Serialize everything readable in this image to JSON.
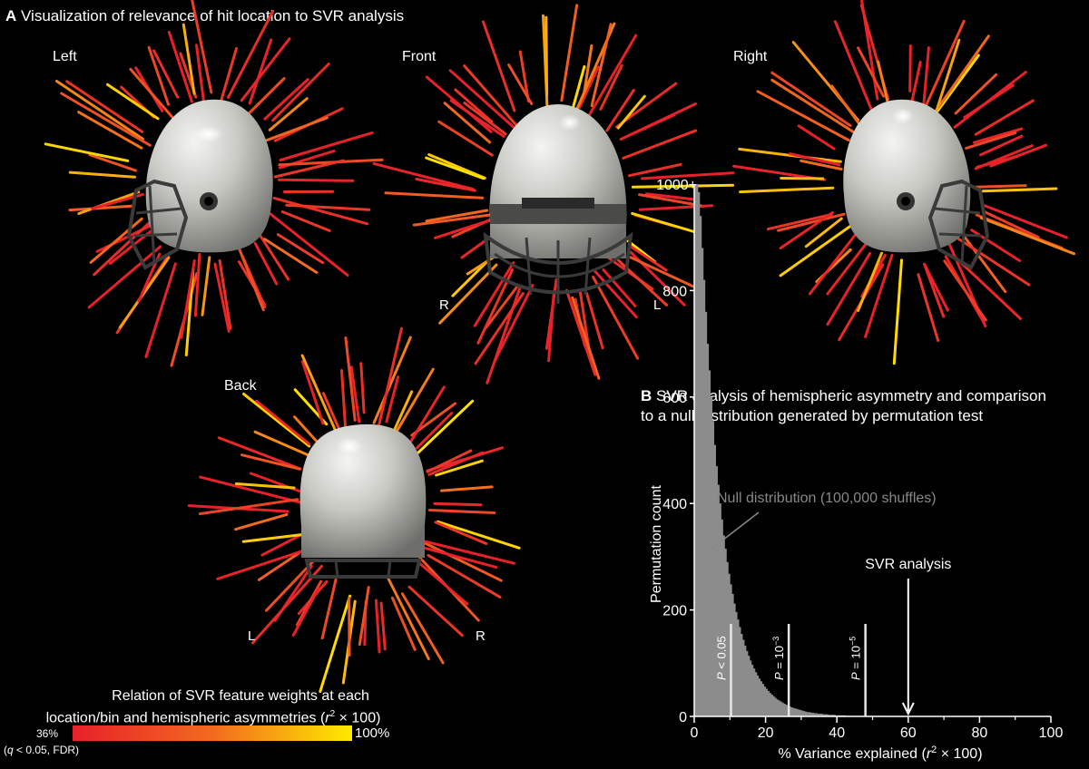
{
  "panel_a": {
    "letter": "A",
    "title": "Visualization of relevance of hit location to SVR analysis",
    "views": [
      {
        "label": "Left"
      },
      {
        "label": "Front",
        "left_marker": "R",
        "right_marker": "L"
      },
      {
        "label": "Right"
      },
      {
        "label": "Back",
        "left_marker": "L",
        "right_marker": "R"
      }
    ],
    "colorbar": {
      "title_line1": "Relation of SVR feature weights at each",
      "title_line2_prefix": "location/bin and hemispheric asymmetries (",
      "title_line2_italic": "r",
      "title_line2_sup": "2",
      "title_line2_suffix": " × 100)",
      "min_label": "36%",
      "max_label": "100%",
      "note_open": "(",
      "note_italic": "q",
      "note_rest": " < 0.05, FDR)",
      "colors": [
        "#e8202a",
        "#f26a1f",
        "#ffea00"
      ]
    }
  },
  "panel_b": {
    "letter": "B",
    "title_line1": "SVR analysis of hemispheric asymmetry and comparison",
    "title_line2": "to a null distribution generated by permutation test",
    "null_label": "Null distribution (100,000 shuffles)",
    "svr_label": "SVR analysis",
    "thresholds": [
      {
        "p_italic": "P",
        "text": " < 0.05",
        "x": 10.3
      },
      {
        "p_italic": "P",
        "text": " = 10",
        "sup": "−3",
        "x": 26.5
      },
      {
        "p_italic": "P",
        "text": " = 10",
        "sup": "−5",
        "x": 48
      }
    ]
  },
  "chart_data": {
    "type": "bar",
    "xlabel": "% Variance explained (r² × 100)",
    "ylabel": "Permutation count",
    "xlim": [
      0,
      100
    ],
    "ylim": [
      0,
      1000
    ],
    "xticks": [
      0,
      20,
      40,
      60,
      80,
      100
    ],
    "yticks": [
      0,
      200,
      400,
      600,
      800
    ],
    "ytick_top_label": "1000+",
    "bin_width": 0.5,
    "values": [
      1000,
      1000,
      985,
      940,
      880,
      820,
      760,
      700,
      650,
      600,
      555,
      510,
      470,
      435,
      400,
      370,
      340,
      315,
      290,
      268,
      248,
      230,
      212,
      196,
      182,
      168,
      155,
      144,
      133,
      123,
      114,
      105,
      97,
      90,
      83,
      77,
      71,
      66,
      61,
      56,
      52,
      48,
      44,
      41,
      38,
      35,
      32,
      30,
      28,
      26,
      24,
      22,
      20,
      19,
      17,
      16,
      15,
      14,
      13,
      12,
      11,
      10,
      9,
      8,
      8,
      7,
      7,
      6,
      6,
      5,
      5,
      5,
      4,
      4,
      4,
      3,
      3,
      3,
      3,
      2,
      2,
      2,
      2,
      2,
      2,
      1,
      1,
      1,
      1,
      1,
      1,
      1,
      1,
      1,
      1,
      1,
      1,
      1,
      1,
      1,
      1,
      1,
      1,
      1,
      1
    ],
    "svr_value": 60,
    "tail_extent": 52
  }
}
